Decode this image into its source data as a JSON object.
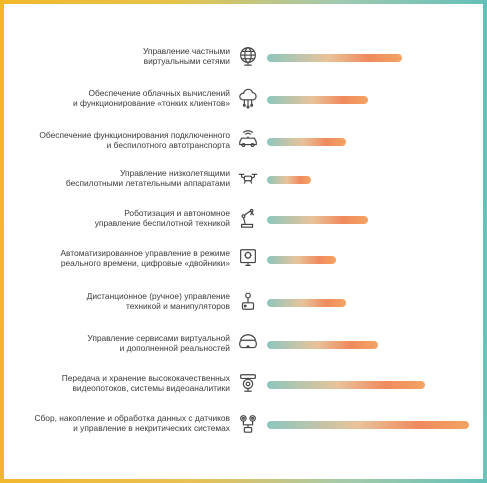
{
  "chart_data": {
    "type": "bar",
    "orientation": "horizontal",
    "categories": [
      "Управление частными\nвиртуальными сетями",
      "Обеспечение облачных вычислений\nи функционирование «тонких клиентов»",
      "Обеспечение функционирования подключенного\nи беспилотного  автотранспорта",
      "Управление низколетящими\nбеспилотными летательными аппаратами",
      "Роботизация и автономное\nуправление беспилотной техникой",
      "Автоматизированное управление в режиме\nреального времени, цифровые «двойники»",
      "Дистанционное (ручное) управление\nтехникой и манипуляторов",
      "Управление сервисами виртуальной\nи дополненной реальностей",
      "Передача и хранение высококачественных\nвидеопотоков, системы видеоаналитики",
      "Сбор, накопление и обработка данных с датчиков\nи управление в некритических системах"
    ],
    "values": [
      0.67,
      0.5,
      0.39,
      0.22,
      0.5,
      0.34,
      0.39,
      0.55,
      0.78,
      1.0
    ],
    "icons": [
      "network-globe-icon",
      "cloud-computing-icon",
      "connected-car-icon",
      "drone-icon",
      "robot-arm-icon",
      "digital-twin-icon",
      "joystick-icon",
      "vr-headset-icon",
      "security-camera-icon",
      "sensors-gears-icon"
    ],
    "title": "",
    "xlabel": "",
    "ylabel": "",
    "xlim": [
      0,
      1
    ],
    "grid": false,
    "bar_gradient": [
      "#8cc6be",
      "#e9c39a",
      "#f08a5e",
      "#f4a463"
    ]
  },
  "colors": {
    "frame_yellow": "#f2b82c",
    "frame_teal": "#63c0b9",
    "label_text": "#3b3b3b",
    "icon_stroke": "#444444"
  }
}
